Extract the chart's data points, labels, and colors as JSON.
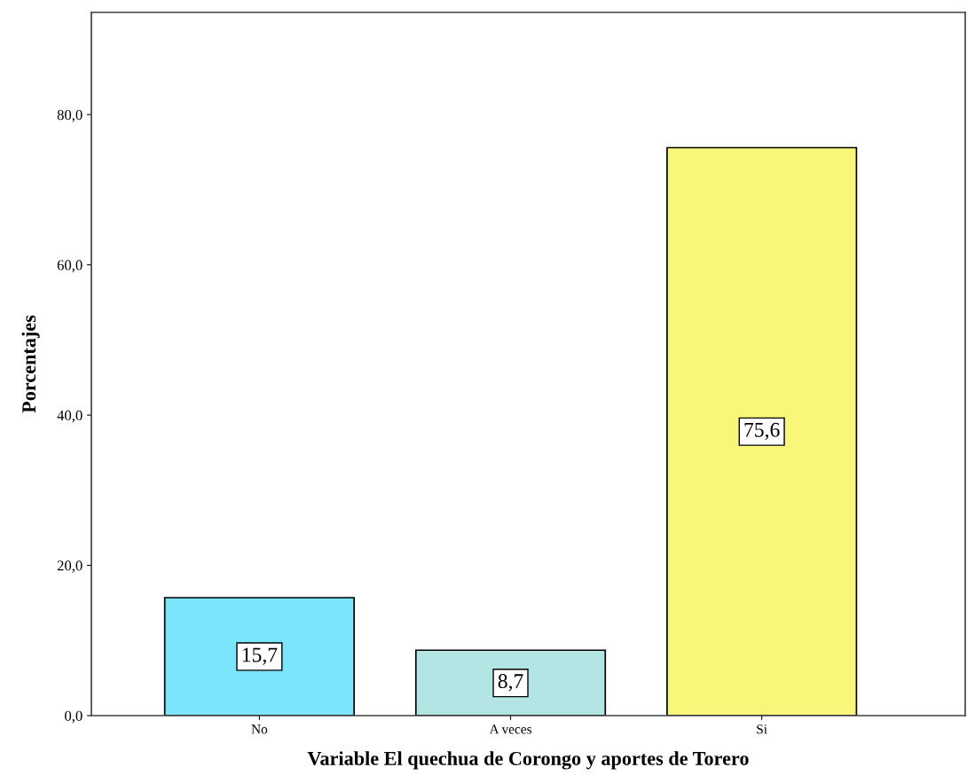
{
  "chart_data": {
    "type": "bar",
    "xlabel": "Variable El quechua de Corongo y aportes de Torero",
    "ylabel": "Porcentajes",
    "categories": [
      "No",
      "A veces",
      "Si"
    ],
    "values": [
      15.7,
      8.7,
      75.6
    ],
    "colors": [
      "#7ae5fb",
      "#b3e5e5",
      "#f8f77a"
    ],
    "value_labels": [
      "15,7",
      "8,7",
      "75,6"
    ],
    "ylim": [
      0,
      93.6
    ],
    "yticks": [
      {
        "value": 0,
        "label": "0,0"
      },
      {
        "value": 20,
        "label": "20,0"
      },
      {
        "value": 40,
        "label": "40,0"
      },
      {
        "value": 60,
        "label": "60,0"
      },
      {
        "value": 80,
        "label": "80,0"
      }
    ],
    "grid": false,
    "legend": false
  }
}
